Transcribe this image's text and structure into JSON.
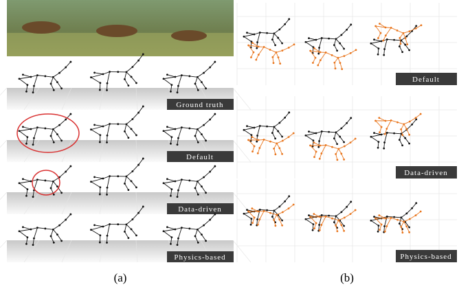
{
  "panel_a": {
    "rows": [
      {
        "label": "Ground truth"
      },
      {
        "label": "Default"
      },
      {
        "label": "Data-driven"
      },
      {
        "label": "Physics-based"
      }
    ],
    "caption": "(a)"
  },
  "panel_b": {
    "rows": [
      {
        "label": "Default"
      },
      {
        "label": "Data-driven"
      },
      {
        "label": "Physics-based"
      }
    ],
    "caption": "(b)"
  }
}
